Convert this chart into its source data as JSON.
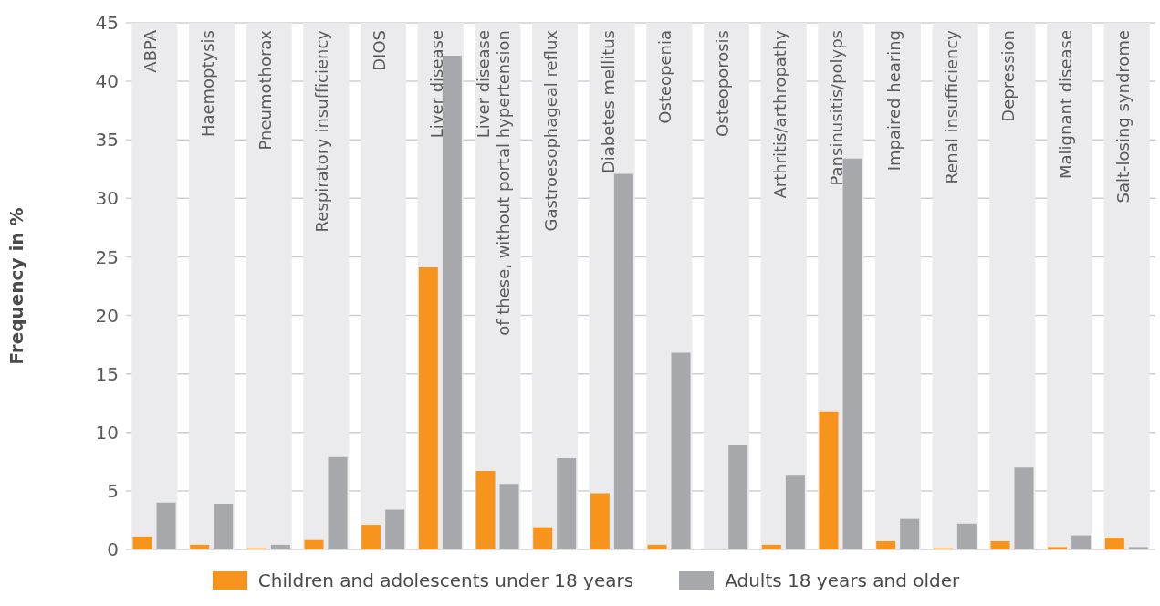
{
  "chart_data": {
    "type": "bar",
    "ylabel": "Frequency in %",
    "categories": [
      "ABPA",
      "Haemoptysis",
      "Pneumothorax",
      "Respiratory insufficiency",
      "DIOS",
      "Liver disease",
      "Liver disease\nof these, without portal hypertension",
      "Gastroesophageal reflux",
      "Diabetes mellitus",
      "Osteopenia",
      "Osteoporosis",
      "Arthritis/arthropathy",
      "Pansinusitis/polyps",
      "Impaired hearing",
      "Renal insufficiency",
      "Depression",
      "Malignant disease",
      "Salt-losing syndrome"
    ],
    "series": [
      {
        "name": "Children and adolescents under 18 years",
        "color": "#f7941d",
        "values": [
          1.1,
          0.4,
          0.1,
          0.8,
          2.1,
          24.1,
          6.7,
          1.9,
          4.8,
          0.4,
          0,
          0.4,
          11.8,
          0.7,
          0.1,
          0.7,
          0.2,
          1.0
        ]
      },
      {
        "name": "Adults 18 years and older",
        "color": "#a7a8ab",
        "values": [
          4.0,
          3.9,
          0.4,
          7.9,
          3.4,
          42.2,
          5.6,
          7.8,
          32.1,
          16.8,
          8.9,
          6.3,
          33.4,
          2.6,
          2.2,
          7.0,
          1.2,
          0.2
        ]
      }
    ],
    "bands": [
      {
        "axis": "x",
        "from": "ABPA",
        "to": "ABPA",
        "color": "#ebebed"
      },
      {
        "axis": "x",
        "from": "Haemoptysis",
        "to": "Haemoptysis",
        "color": "#ebebed"
      },
      {
        "axis": "x",
        "from": "Pneumothorax",
        "to": "Pneumothorax",
        "color": "#ebebed"
      },
      {
        "axis": "x",
        "from": "Respiratory insufficiency",
        "to": "Respiratory insufficiency",
        "color": "#ebebed"
      },
      {
        "axis": "x",
        "from": "DIOS",
        "to": "DIOS",
        "color": "#ebebed"
      },
      {
        "axis": "x",
        "from": "Liver disease",
        "to": "Liver disease",
        "color": "#ebebed"
      },
      {
        "axis": "x",
        "from": "Liver disease\nof these, without portal hypertension",
        "to": "Liver disease\nof these, without portal hypertension",
        "color": "#ebebed"
      },
      {
        "axis": "x",
        "from": "Gastroesophageal reflux",
        "to": "Gastroesophageal reflux",
        "color": "#ebebed"
      },
      {
        "axis": "x",
        "from": "Diabetes mellitus",
        "to": "Diabetes mellitus",
        "color": "#ebebed"
      },
      {
        "axis": "x",
        "from": "Osteopenia",
        "to": "Osteopenia",
        "color": "#ebebed"
      },
      {
        "axis": "x",
        "from": "Osteoporosis",
        "to": "Osteoporosis",
        "color": "#ebebed"
      },
      {
        "axis": "x",
        "from": "Arthritis/arthropathy",
        "to": "Arthritis/arthropathy",
        "color": "#ebebed"
      },
      {
        "axis": "x",
        "from": "Pansinusitis/polyps",
        "to": "Pansinusitis/polyps",
        "color": "#ebebed"
      },
      {
        "axis": "x",
        "from": "Impaired hearing",
        "to": "Impaired hearing",
        "color": "#ebebed"
      },
      {
        "axis": "x",
        "from": "Renal insufficiency",
        "to": "Renal insufficiency",
        "color": "#ebebed"
      },
      {
        "axis": "x",
        "from": "Depression",
        "to": "Depression",
        "color": "#ebebed"
      },
      {
        "axis": "x",
        "from": "Malignant disease",
        "to": "Malignant disease",
        "color": "#ebebed"
      },
      {
        "axis": "x",
        "from": "Salt-losing syndrome",
        "to": "Salt-losing syndrome",
        "color": "#ebebed"
      }
    ],
    "ylim": [
      0,
      45
    ],
    "yticks": [
      0,
      5,
      10,
      15,
      20,
      25,
      30,
      35,
      40,
      45
    ],
    "grid": "y",
    "legend": "bottom"
  }
}
